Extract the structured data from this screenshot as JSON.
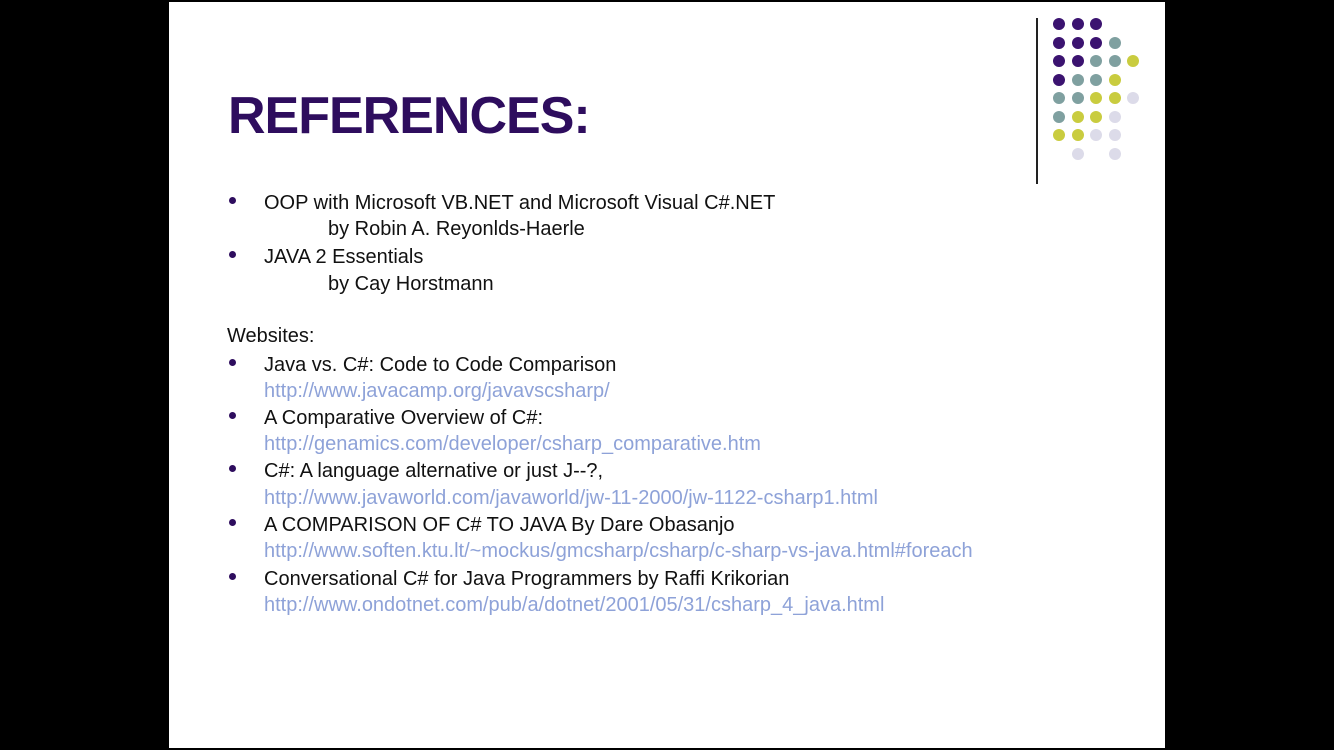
{
  "slide": {
    "title": "REFERENCES:",
    "books": [
      {
        "title": "OOP with Microsoft VB.NET and Microsoft Visual C#.NET",
        "author": "by Robin A. Reyonlds-Haerle"
      },
      {
        "title": "JAVA 2 Essentials",
        "author": "by Cay Horstmann"
      }
    ],
    "websites_heading": "Websites:",
    "websites": [
      {
        "title": "Java vs. C#: Code to Code Comparison",
        "url": "http://www.javacamp.org/javavscsharp/"
      },
      {
        "title": "A Comparative Overview of C#:",
        "url": "http://genamics.com/developer/csharp_comparative.htm"
      },
      {
        "title": "C#: A language alternative or just J--?,",
        "url": "http://www.javaworld.com/javaworld/jw-11-2000/jw-1122-csharp1.html"
      },
      {
        "title": "A COMPARISON OF C# TO JAVA By Dare Obasanjo",
        "url": "http://www.soften.ktu.lt/~mockus/gmcsharp/csharp/c-sharp-vs-java.html#foreach"
      },
      {
        "title": "Conversational C# for Java Programmers by Raffi Krikorian",
        "url": "http://www.ondotnet.com/pub/a/dotnet/2001/05/31/csharp_4_java.html"
      }
    ]
  },
  "colors": {
    "title": "#2e0d5e",
    "link": "#8ea2d8",
    "dot_purple": "#3b1370",
    "dot_teal": "#7fa0a0",
    "dot_yellow": "#c9cc3f",
    "dot_lavender": "#dcdbe9"
  }
}
